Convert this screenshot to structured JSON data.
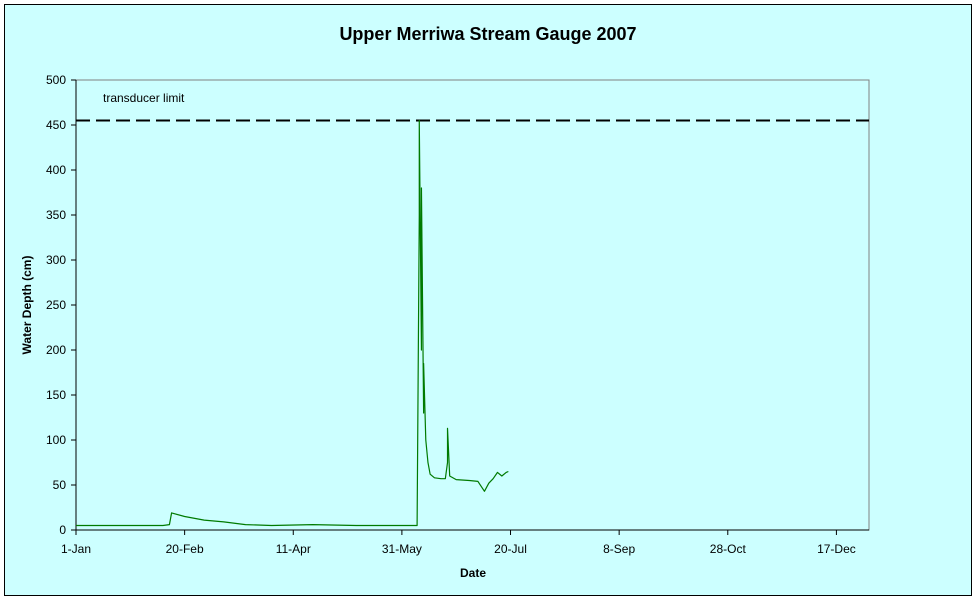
{
  "chart_data": {
    "type": "line",
    "title": "Upper Merriwa Stream Gauge 2007",
    "xlabel": "Date",
    "ylabel": "Water Depth (cm)",
    "xlim": [
      "1-Jan",
      "31-Dec"
    ],
    "ylim": [
      0,
      500
    ],
    "x_tick_labels": [
      "1-Jan",
      "20-Feb",
      "11-Apr",
      "31-May",
      "20-Jul",
      "8-Sep",
      "28-Oct",
      "17-Dec"
    ],
    "y_tick_labels": [
      "0",
      "50",
      "100",
      "150",
      "200",
      "250",
      "300",
      "350",
      "400",
      "450",
      "500"
    ],
    "grid": false,
    "legend": "none",
    "annotations": [
      {
        "text": "transducer limit",
        "reference_line_y": 455
      }
    ],
    "series": [
      {
        "color": "#007a00",
        "points": [
          [
            "1-Jan",
            5
          ],
          [
            "15-Jan",
            5
          ],
          [
            "30-Jan",
            5
          ],
          [
            "10-Feb",
            5
          ],
          [
            "13-Feb",
            6
          ],
          [
            "14-Feb",
            19
          ],
          [
            "20-Feb",
            15
          ],
          [
            "1-Mar",
            11
          ],
          [
            "10-Mar",
            9
          ],
          [
            "20-Mar",
            6
          ],
          [
            "1-Apr",
            5
          ],
          [
            "20-Apr",
            6
          ],
          [
            "10-May",
            5
          ],
          [
            "1-Jun",
            5
          ],
          [
            "7-Jun",
            5
          ],
          [
            "8-Jun",
            350
          ],
          [
            "8-Jun",
            455
          ],
          [
            "9-Jun",
            200
          ],
          [
            "9-Jun",
            380
          ],
          [
            "10-Jun",
            130
          ],
          [
            "10-Jun",
            185
          ],
          [
            "11-Jun",
            100
          ],
          [
            "12-Jun",
            75
          ],
          [
            "13-Jun",
            62
          ],
          [
            "15-Jun",
            58
          ],
          [
            "18-Jun",
            57
          ],
          [
            "20-Jun",
            57
          ],
          [
            "21-Jun",
            75
          ],
          [
            "21-Jun",
            113
          ],
          [
            "22-Jun",
            60
          ],
          [
            "25-Jun",
            56
          ],
          [
            "1-Jul",
            55
          ],
          [
            "5-Jul",
            54
          ],
          [
            "8-Jul",
            43
          ],
          [
            "10-Jul",
            52
          ],
          [
            "12-Jul",
            57
          ],
          [
            "14-Jul",
            64
          ],
          [
            "16-Jul",
            60
          ],
          [
            "18-Jul",
            64
          ],
          [
            "19-Jul",
            65
          ]
        ]
      }
    ],
    "reference_lines": [
      {
        "y": 455,
        "style": "dashed",
        "color": "#000000"
      }
    ]
  },
  "colors": {
    "plot_background": "#ccffff",
    "axis": "#808080",
    "series": "#007a00"
  }
}
